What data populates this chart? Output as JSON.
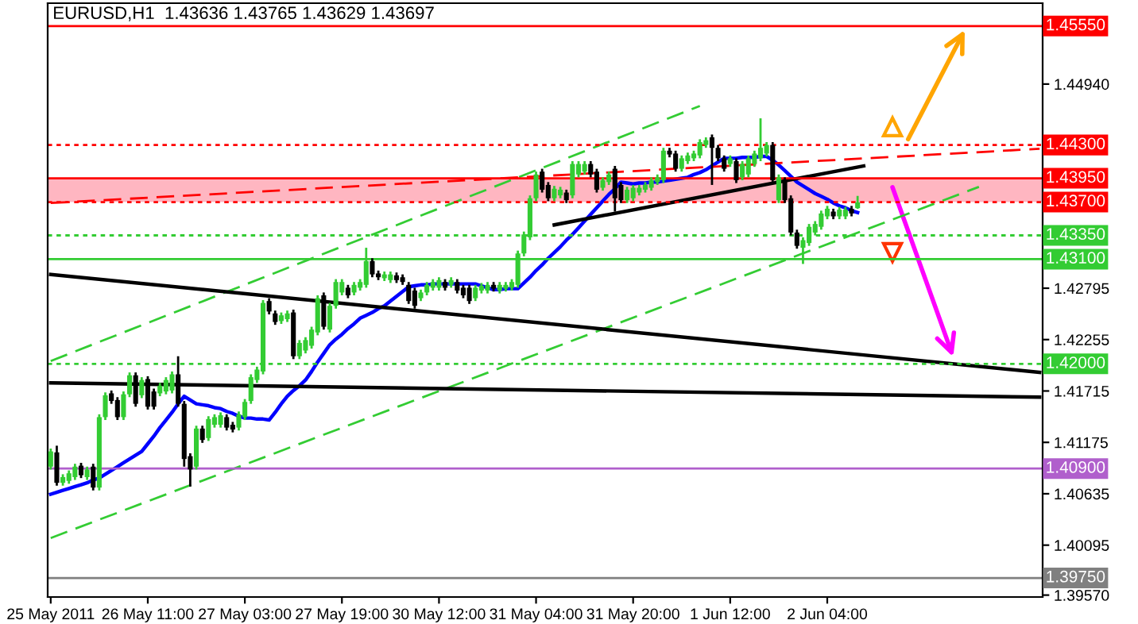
{
  "chart_data": {
    "type": "candlestick",
    "title": "EURUSD,H1  1.43636 1.43765 1.43629 1.43697",
    "categories": [
      "25 May 2011",
      null,
      null,
      null,
      null,
      null,
      null,
      null,
      null,
      null,
      null,
      null,
      null,
      null,
      null,
      null,
      "26 May 11:00",
      null,
      null,
      null,
      null,
      null,
      null,
      null,
      null,
      null,
      null,
      null,
      null,
      null,
      null,
      null,
      "27 May 03:00",
      null,
      null,
      null,
      null,
      null,
      null,
      null,
      null,
      null,
      null,
      null,
      null,
      null,
      null,
      null,
      "27 May 19:00",
      null,
      null,
      null,
      null,
      null,
      null,
      null,
      null,
      null,
      null,
      null,
      null,
      null,
      null,
      null,
      "30 May 12:00",
      null,
      null,
      null,
      null,
      null,
      null,
      null,
      null,
      null,
      null,
      null,
      null,
      null,
      null,
      null,
      "31 May 04:00",
      null,
      null,
      null,
      null,
      null,
      null,
      null,
      null,
      null,
      null,
      null,
      null,
      null,
      null,
      null,
      "31 May 20:00",
      null,
      null,
      null,
      null,
      null,
      null,
      null,
      null,
      null,
      null,
      null,
      null,
      null,
      null,
      null,
      "1 Jun 12:00",
      null,
      null,
      null,
      null,
      null,
      null,
      null,
      null,
      null,
      null,
      null,
      null,
      null,
      null,
      null,
      "2 Jun 04:00",
      null,
      null,
      null,
      null,
      null,
      null,
      null,
      null,
      null,
      null,
      null,
      null,
      null,
      null,
      null,
      null,
      null,
      null,
      null,
      null,
      null,
      null,
      null,
      null,
      null,
      null,
      null,
      null,
      null,
      null,
      null,
      null,
      null,
      null,
      null
    ],
    "ohlc": [
      [
        1.4092,
        1.4111,
        1.4089,
        1.4108
      ],
      [
        1.4107,
        1.4114,
        1.4072,
        1.4075
      ],
      [
        1.4075,
        1.4084,
        1.4072,
        1.4081
      ],
      [
        1.4077,
        1.4088,
        1.4074,
        1.4085
      ],
      [
        1.4081,
        1.4095,
        1.4078,
        1.4092
      ],
      [
        1.4093,
        1.4096,
        1.408,
        1.4083
      ],
      [
        1.4081,
        1.4092,
        1.4078,
        1.4089
      ],
      [
        1.4092,
        1.4095,
        1.4067,
        1.407
      ],
      [
        1.407,
        1.4147,
        1.4067,
        1.4144
      ],
      [
        1.4144,
        1.417,
        1.4141,
        1.4167
      ],
      [
        1.4169,
        1.4172,
        1.4158,
        1.4161
      ],
      [
        1.4162,
        1.4165,
        1.4141,
        1.4144
      ],
      [
        1.4144,
        1.4171,
        1.4141,
        1.4168
      ],
      [
        1.4168,
        1.4191,
        1.4165,
        1.4188
      ],
      [
        1.4188,
        1.4191,
        1.4155,
        1.4158
      ],
      [
        1.4167,
        1.4186,
        1.4164,
        1.4183
      ],
      [
        1.4184,
        1.4187,
        1.4152,
        1.4155
      ],
      [
        1.4171,
        1.4174,
        1.4152,
        1.4155
      ],
      [
        1.4169,
        1.418,
        1.4166,
        1.4177
      ],
      [
        1.4171,
        1.4186,
        1.4168,
        1.4183
      ],
      [
        1.4172,
        1.4192,
        1.4169,
        1.4189
      ],
      [
        1.4189,
        1.4208,
        1.4155,
        1.4158
      ],
      [
        1.4158,
        1.4161,
        1.4092,
        1.41
      ],
      [
        1.4103,
        1.4106,
        1.4071,
        1.4089
      ],
      [
        1.4092,
        1.4135,
        1.4089,
        1.4132
      ],
      [
        1.4132,
        1.4135,
        1.4117,
        1.412
      ],
      [
        1.4122,
        1.4145,
        1.4119,
        1.4142
      ],
      [
        1.4136,
        1.4147,
        1.4133,
        1.4144
      ],
      [
        1.4136,
        1.4149,
        1.4133,
        1.4146
      ],
      [
        1.4144,
        1.4147,
        1.413,
        1.4133
      ],
      [
        1.4136,
        1.4139,
        1.4128,
        1.4131
      ],
      [
        1.4133,
        1.415,
        1.413,
        1.4147
      ],
      [
        1.4144,
        1.4163,
        1.4141,
        1.416
      ],
      [
        1.4161,
        1.4189,
        1.4158,
        1.4186
      ],
      [
        1.4183,
        1.4197,
        1.418,
        1.4194
      ],
      [
        1.4192,
        1.4267,
        1.4189,
        1.4264
      ],
      [
        1.4266,
        1.4269,
        1.4252,
        1.4255
      ],
      [
        1.4253,
        1.4256,
        1.4241,
        1.4244
      ],
      [
        1.4245,
        1.4254,
        1.4242,
        1.4251
      ],
      [
        1.4247,
        1.4256,
        1.4244,
        1.4253
      ],
      [
        1.4254,
        1.4257,
        1.4205,
        1.4208
      ],
      [
        1.4208,
        1.4225,
        1.4205,
        1.4222
      ],
      [
        1.4214,
        1.4228,
        1.4211,
        1.4225
      ],
      [
        1.4219,
        1.4239,
        1.4216,
        1.4236
      ],
      [
        1.4233,
        1.4272,
        1.423,
        1.4269
      ],
      [
        1.4272,
        1.4275,
        1.4236,
        1.4239
      ],
      [
        1.4236,
        1.4264,
        1.4233,
        1.4261
      ],
      [
        1.4261,
        1.4289,
        1.4258,
        1.4286
      ],
      [
        1.4275,
        1.4289,
        1.4272,
        1.4286
      ],
      [
        1.428,
        1.4283,
        1.4269,
        1.4272
      ],
      [
        1.4275,
        1.4286,
        1.4272,
        1.4283
      ],
      [
        1.428,
        1.4289,
        1.4277,
        1.4286
      ],
      [
        1.4283,
        1.4322,
        1.428,
        1.4308
      ],
      [
        1.4308,
        1.4311,
        1.4291,
        1.4294
      ],
      [
        1.4295,
        1.4298,
        1.4288,
        1.4291
      ],
      [
        1.429,
        1.4297,
        1.4287,
        1.4294
      ],
      [
        1.4288,
        1.4297,
        1.4285,
        1.4294
      ],
      [
        1.4293,
        1.4296,
        1.4285,
        1.4288
      ],
      [
        1.4291,
        1.4294,
        1.4283,
        1.4286
      ],
      [
        1.4283,
        1.4286,
        1.4263,
        1.4266
      ],
      [
        1.4277,
        1.428,
        1.4258,
        1.4261
      ],
      [
        1.4269,
        1.4278,
        1.4266,
        1.4275
      ],
      [
        1.4275,
        1.4286,
        1.4272,
        1.4283
      ],
      [
        1.428,
        1.4289,
        1.4277,
        1.4286
      ],
      [
        1.428,
        1.4291,
        1.4277,
        1.4288
      ],
      [
        1.4286,
        1.4289,
        1.4277,
        1.428
      ],
      [
        1.4283,
        1.4291,
        1.428,
        1.4288
      ],
      [
        1.4286,
        1.4289,
        1.4274,
        1.4277
      ],
      [
        1.428,
        1.4283,
        1.4269,
        1.4272
      ],
      [
        1.428,
        1.4283,
        1.4263,
        1.4266
      ],
      [
        1.4269,
        1.4283,
        1.4266,
        1.428
      ],
      [
        1.4277,
        1.4285,
        1.4274,
        1.4282
      ],
      [
        1.4277,
        1.4286,
        1.4274,
        1.4283
      ],
      [
        1.4283,
        1.4286,
        1.4276,
        1.4279
      ],
      [
        1.4277,
        1.4286,
        1.4274,
        1.4283
      ],
      [
        1.4279,
        1.4286,
        1.4276,
        1.4283
      ],
      [
        1.428,
        1.4289,
        1.4277,
        1.4286
      ],
      [
        1.4283,
        1.4319,
        1.428,
        1.4316
      ],
      [
        1.4316,
        1.4339,
        1.4313,
        1.4336
      ],
      [
        1.4333,
        1.4377,
        1.433,
        1.4374
      ],
      [
        1.4374,
        1.4402,
        1.4371,
        1.4399
      ],
      [
        1.4402,
        1.4405,
        1.438,
        1.4383
      ],
      [
        1.4388,
        1.4391,
        1.4371,
        1.4374
      ],
      [
        1.4374,
        1.4387,
        1.4371,
        1.4384
      ],
      [
        1.4377,
        1.4386,
        1.4374,
        1.4383
      ],
      [
        1.438,
        1.4383,
        1.4369,
        1.4372
      ],
      [
        1.4377,
        1.4413,
        1.4374,
        1.441
      ],
      [
        1.4399,
        1.4413,
        1.4396,
        1.441
      ],
      [
        1.4402,
        1.4413,
        1.4399,
        1.441
      ],
      [
        1.441,
        1.4413,
        1.4396,
        1.4399
      ],
      [
        1.4402,
        1.4405,
        1.438,
        1.4383
      ],
      [
        1.4385,
        1.4396,
        1.4382,
        1.4393
      ],
      [
        1.4391,
        1.4402,
        1.4388,
        1.4399
      ],
      [
        1.4405,
        1.4408,
        1.436,
        1.4374
      ],
      [
        1.4388,
        1.4391,
        1.4369,
        1.4372
      ],
      [
        1.4372,
        1.4386,
        1.4369,
        1.4383
      ],
      [
        1.4374,
        1.4388,
        1.4371,
        1.4385
      ],
      [
        1.438,
        1.4388,
        1.4377,
        1.4385
      ],
      [
        1.4383,
        1.4391,
        1.438,
        1.4388
      ],
      [
        1.4385,
        1.4396,
        1.4382,
        1.4393
      ],
      [
        1.4391,
        1.4399,
        1.4388,
        1.4396
      ],
      [
        1.4393,
        1.4427,
        1.439,
        1.4424
      ],
      [
        1.4424,
        1.4427,
        1.4417,
        1.442
      ],
      [
        1.4421,
        1.4424,
        1.4402,
        1.4405
      ],
      [
        1.4405,
        1.4419,
        1.4402,
        1.4416
      ],
      [
        1.4413,
        1.4422,
        1.441,
        1.4419
      ],
      [
        1.4416,
        1.4424,
        1.4413,
        1.4421
      ],
      [
        1.4419,
        1.4436,
        1.4416,
        1.4433
      ],
      [
        1.443,
        1.4438,
        1.4427,
        1.4435
      ],
      [
        1.4438,
        1.4441,
        1.4388,
        1.4427
      ],
      [
        1.4427,
        1.443,
        1.4413,
        1.4416
      ],
      [
        1.4416,
        1.4419,
        1.4402,
        1.4405
      ],
      [
        1.441,
        1.4419,
        1.4407,
        1.4416
      ],
      [
        1.4413,
        1.4416,
        1.439,
        1.4393
      ],
      [
        1.4396,
        1.4413,
        1.4393,
        1.441
      ],
      [
        1.4399,
        1.4419,
        1.4396,
        1.4416
      ],
      [
        1.441,
        1.4424,
        1.4407,
        1.4421
      ],
      [
        1.4416,
        1.4458,
        1.4413,
        1.4427
      ],
      [
        1.4421,
        1.4433,
        1.4418,
        1.443
      ],
      [
        1.443,
        1.4433,
        1.439,
        1.4393
      ],
      [
        1.4372,
        1.4399,
        1.4369,
        1.4396
      ],
      [
        1.4393,
        1.4396,
        1.4369,
        1.4372
      ],
      [
        1.4374,
        1.4377,
        1.4335,
        1.4338
      ],
      [
        1.4338,
        1.4341,
        1.4321,
        1.4324
      ],
      [
        1.4322,
        1.4333,
        1.4305,
        1.433
      ],
      [
        1.4327,
        1.4347,
        1.4324,
        1.4344
      ],
      [
        1.4338,
        1.435,
        1.4335,
        1.4347
      ],
      [
        1.4344,
        1.4361,
        1.4341,
        1.4358
      ],
      [
        1.4355,
        1.4366,
        1.4352,
        1.4363
      ],
      [
        1.436,
        1.4363,
        1.4352,
        1.4355
      ],
      [
        1.4355,
        1.4365,
        1.4352,
        1.4362
      ],
      [
        1.4355,
        1.4365,
        1.4352,
        1.4362
      ],
      [
        1.4363,
        1.4366,
        1.4355,
        1.4358
      ],
      [
        1.43636,
        1.43765,
        1.43629,
        1.43697
      ],
      null,
      null,
      null,
      null,
      null,
      null,
      null,
      null,
      null,
      null,
      null,
      null,
      null,
      null,
      null,
      null,
      null,
      null,
      null,
      null,
      null,
      null,
      null,
      null,
      null,
      null,
      null,
      null,
      null,
      null
    ],
    "series": [
      {
        "type": "line",
        "color": "#0000ff",
        "values": [
          1.4063,
          1.4065,
          1.4067,
          1.4069,
          1.4071,
          1.4073,
          1.4075,
          1.4078,
          1.408,
          1.4084,
          1.4088,
          1.4092,
          1.4096,
          1.41,
          1.4104,
          1.4108,
          1.4116,
          1.4124,
          1.4133,
          1.4141,
          1.4149,
          1.4158,
          1.4166,
          1.4162,
          1.4158,
          1.4157,
          1.4156,
          1.4154,
          1.4153,
          1.415,
          1.4148,
          1.4145,
          1.4143,
          1.4143,
          1.4142,
          1.4142,
          1.4141,
          1.4149,
          1.4158,
          1.4166,
          1.4172,
          1.4177,
          1.4183,
          1.4192,
          1.4202,
          1.4211,
          1.422,
          1.4226,
          1.4231,
          1.4237,
          1.4242,
          1.4248,
          1.4251,
          1.4254,
          1.4258,
          1.4261,
          1.4266,
          1.4271,
          1.4276,
          1.4281,
          1.4282,
          1.4283,
          1.4283,
          1.4284,
          1.4284,
          1.4284,
          1.4284,
          1.4284,
          1.4284,
          1.4284,
          1.4284,
          1.4282,
          1.428,
          1.4278,
          1.4278,
          1.4279,
          1.4279,
          1.4279,
          1.4285,
          1.4291,
          1.4298,
          1.4304,
          1.4311,
          1.4317,
          1.4323,
          1.433,
          1.4336,
          1.4343,
          1.435,
          1.4357,
          1.4364,
          1.4371,
          1.4378,
          1.4384,
          1.4391,
          1.439,
          1.4389,
          1.439,
          1.439,
          1.4391,
          1.4391,
          1.4392,
          1.4393,
          1.4394,
          1.4395,
          1.4396,
          1.4399,
          1.4401,
          1.4404,
          1.4408,
          1.4412,
          1.4416,
          1.4416,
          1.4416,
          1.4417,
          1.4417,
          1.4417,
          1.4418,
          1.4418,
          1.4414,
          1.4409,
          1.4403,
          1.4397,
          1.4391,
          1.4387,
          1.4383,
          1.4379,
          1.4376,
          1.4373,
          1.4369,
          1.4366,
          1.4364,
          1.4361,
          1.4359,
          null,
          null,
          null,
          null,
          null,
          null,
          null,
          null,
          null,
          null,
          null,
          null,
          null,
          null,
          null,
          null,
          null,
          null,
          null,
          null,
          null,
          null,
          null,
          null,
          null,
          null,
          null,
          null,
          null,
          null
        ]
      },
      {
        "type": "line",
        "color": "#33cc33",
        "line_style": "dashed",
        "values": [
          1.4203,
          null,
          null,
          null,
          null,
          null,
          null,
          null,
          null,
          null,
          null,
          null,
          null,
          null,
          null,
          null,
          null,
          null,
          null,
          null,
          null,
          null,
          null,
          null,
          null,
          null,
          null,
          null,
          null,
          null,
          null,
          null,
          null,
          null,
          null,
          null,
          null,
          null,
          null,
          null,
          null,
          null,
          null,
          null,
          null,
          null,
          null,
          null,
          null,
          null,
          null,
          null,
          null,
          null,
          null,
          null,
          null,
          null,
          null,
          null,
          null,
          null,
          null,
          null,
          null,
          null,
          null,
          null,
          null,
          null,
          null,
          null,
          null,
          null,
          null,
          null,
          null,
          null,
          null,
          null,
          null,
          null,
          null,
          null,
          null,
          null,
          null,
          null,
          null,
          null,
          null,
          null,
          null,
          null,
          null,
          null,
          null,
          null,
          null,
          null,
          null,
          null,
          null,
          null,
          null,
          null,
          null,
          1.4471,
          null,
          null,
          null,
          null,
          null,
          null,
          null,
          null,
          null,
          null,
          null,
          null,
          null,
          null,
          null,
          null,
          null,
          null,
          null,
          null,
          null,
          null,
          null,
          null,
          null,
          null,
          null,
          null,
          null,
          null,
          null,
          null,
          null,
          null,
          null,
          null,
          null,
          null,
          null,
          null,
          null,
          null,
          null,
          null,
          null,
          null,
          null,
          null,
          null,
          null,
          null,
          null,
          null,
          null,
          null,
          null
        ]
      },
      {
        "type": "line",
        "color": "#33cc33",
        "line_style": "dashed",
        "values": [
          1.4017,
          null,
          null,
          null,
          null,
          null,
          null,
          null,
          null,
          null,
          null,
          null,
          null,
          null,
          null,
          null,
          null,
          null,
          null,
          null,
          null,
          null,
          null,
          null,
          null,
          null,
          null,
          null,
          null,
          null,
          null,
          null,
          null,
          null,
          null,
          null,
          null,
          null,
          null,
          null,
          null,
          null,
          null,
          null,
          null,
          null,
          null,
          null,
          null,
          null,
          null,
          null,
          null,
          null,
          null,
          null,
          null,
          null,
          null,
          null,
          null,
          null,
          null,
          null,
          null,
          null,
          null,
          null,
          null,
          null,
          null,
          null,
          null,
          null,
          null,
          null,
          null,
          null,
          null,
          null,
          null,
          null,
          null,
          null,
          null,
          null,
          null,
          null,
          null,
          null,
          null,
          null,
          null,
          null,
          null,
          null,
          null,
          null,
          null,
          null,
          null,
          null,
          null,
          null,
          null,
          null,
          null,
          null,
          null,
          null,
          null,
          null,
          null,
          null,
          null,
          null,
          null,
          null,
          null,
          null,
          null,
          null,
          null,
          null,
          null,
          null,
          null,
          null,
          null,
          null,
          null,
          null,
          null,
          null,
          null,
          null,
          null,
          null,
          null,
          null,
          null,
          null,
          null,
          null,
          null,
          null,
          null,
          null,
          null,
          null,
          null,
          null,
          null,
          1.4386,
          null,
          null,
          null,
          null,
          null,
          null,
          null,
          null,
          null,
          null
        ]
      },
      {
        "type": "line",
        "color": "#000000",
        "values": [
          1.4294,
          null,
          null,
          null,
          null,
          null,
          null,
          null,
          null,
          null,
          null,
          null,
          null,
          null,
          null,
          null,
          null,
          null,
          null,
          null,
          null,
          null,
          null,
          null,
          null,
          null,
          null,
          null,
          null,
          null,
          null,
          null,
          null,
          null,
          null,
          null,
          null,
          null,
          null,
          null,
          null,
          null,
          null,
          null,
          null,
          null,
          null,
          null,
          null,
          null,
          null,
          null,
          null,
          null,
          null,
          null,
          null,
          null,
          null,
          null,
          null,
          null,
          null,
          null,
          null,
          null,
          null,
          null,
          null,
          null,
          null,
          null,
          null,
          null,
          null,
          null,
          null,
          null,
          null,
          null,
          null,
          null,
          null,
          null,
          null,
          null,
          null,
          null,
          null,
          null,
          null,
          null,
          null,
          null,
          null,
          null,
          null,
          null,
          null,
          null,
          null,
          null,
          null,
          null,
          null,
          null,
          null,
          null,
          null,
          null,
          null,
          null,
          null,
          null,
          null,
          null,
          null,
          null,
          null,
          null,
          null,
          null,
          null,
          null,
          null,
          null,
          null,
          null,
          null,
          null,
          null,
          null,
          null,
          null,
          null,
          null,
          null,
          null,
          null,
          null,
          null,
          null,
          null,
          null,
          null,
          null,
          null,
          null,
          null,
          null,
          null,
          null,
          null,
          null,
          null,
          null,
          null,
          null,
          null,
          null,
          null,
          null,
          null,
          1.4191
        ]
      },
      {
        "type": "line",
        "color": "#000000",
        "values": [
          1.418,
          null,
          null,
          null,
          null,
          null,
          null,
          null,
          null,
          null,
          null,
          null,
          null,
          null,
          null,
          null,
          null,
          null,
          null,
          null,
          null,
          null,
          null,
          null,
          null,
          null,
          null,
          null,
          null,
          null,
          null,
          null,
          null,
          null,
          null,
          null,
          null,
          null,
          null,
          null,
          null,
          null,
          null,
          null,
          null,
          null,
          null,
          null,
          null,
          null,
          null,
          null,
          null,
          null,
          null,
          null,
          null,
          null,
          null,
          null,
          null,
          null,
          null,
          null,
          null,
          null,
          null,
          null,
          null,
          null,
          null,
          null,
          null,
          null,
          null,
          null,
          null,
          null,
          null,
          null,
          null,
          null,
          null,
          null,
          null,
          null,
          null,
          null,
          null,
          null,
          null,
          null,
          null,
          null,
          null,
          null,
          null,
          null,
          null,
          null,
          null,
          null,
          null,
          null,
          null,
          null,
          null,
          null,
          null,
          null,
          null,
          null,
          null,
          null,
          null,
          null,
          null,
          null,
          null,
          null,
          null,
          null,
          null,
          null,
          null,
          null,
          null,
          null,
          null,
          null,
          null,
          null,
          null,
          null,
          null,
          null,
          null,
          null,
          null,
          null,
          null,
          null,
          null,
          null,
          null,
          null,
          null,
          null,
          null,
          null,
          null,
          null,
          null,
          null,
          null,
          null,
          null,
          null,
          null,
          null,
          null,
          null,
          null,
          1.4165
        ]
      },
      {
        "type": "line",
        "color": "#000000",
        "values": [
          null,
          null,
          null,
          null,
          null,
          null,
          null,
          null,
          null,
          null,
          null,
          null,
          null,
          null,
          null,
          null,
          null,
          null,
          null,
          null,
          null,
          null,
          null,
          null,
          null,
          null,
          null,
          null,
          null,
          null,
          null,
          null,
          null,
          null,
          null,
          null,
          null,
          null,
          null,
          null,
          null,
          null,
          null,
          null,
          null,
          null,
          null,
          null,
          null,
          null,
          null,
          null,
          null,
          null,
          null,
          null,
          null,
          null,
          null,
          null,
          null,
          null,
          null,
          null,
          null,
          null,
          null,
          null,
          null,
          null,
          null,
          null,
          null,
          null,
          null,
          null,
          null,
          null,
          null,
          null,
          null,
          null,
          null,
          1.4346,
          null,
          null,
          null,
          null,
          null,
          null,
          null,
          null,
          null,
          null,
          null,
          null,
          null,
          null,
          null,
          null,
          null,
          null,
          null,
          null,
          null,
          null,
          null,
          null,
          null,
          null,
          null,
          null,
          null,
          null,
          null,
          null,
          null,
          null,
          null,
          null,
          null,
          null,
          null,
          null,
          null,
          null,
          null,
          null,
          null,
          null,
          null,
          null,
          null,
          null,
          1.4408,
          null,
          null,
          null,
          null,
          null,
          null,
          null,
          null,
          null,
          null,
          null,
          null,
          null,
          null,
          null,
          null,
          null,
          null,
          null,
          null,
          null,
          null,
          null,
          null,
          null,
          null,
          null,
          null,
          null
        ]
      },
      {
        "type": "line",
        "color": "#ff0000",
        "line_style": "dashed",
        "values": [
          1.4369,
          null,
          null,
          null,
          null,
          null,
          null,
          null,
          null,
          null,
          null,
          null,
          null,
          null,
          null,
          null,
          null,
          null,
          null,
          null,
          null,
          null,
          null,
          null,
          null,
          null,
          null,
          null,
          null,
          null,
          null,
          null,
          null,
          null,
          null,
          null,
          null,
          null,
          null,
          null,
          null,
          null,
          null,
          null,
          null,
          null,
          null,
          null,
          null,
          null,
          null,
          null,
          null,
          null,
          null,
          null,
          null,
          null,
          null,
          null,
          null,
          null,
          null,
          null,
          null,
          null,
          null,
          null,
          null,
          null,
          null,
          null,
          null,
          null,
          null,
          null,
          null,
          null,
          null,
          null,
          null,
          null,
          null,
          null,
          null,
          null,
          null,
          null,
          null,
          null,
          null,
          null,
          null,
          null,
          null,
          null,
          null,
          null,
          null,
          null,
          null,
          null,
          null,
          null,
          null,
          null,
          null,
          null,
          null,
          null,
          null,
          null,
          null,
          null,
          null,
          null,
          null,
          null,
          null,
          null,
          null,
          null,
          null,
          null,
          null,
          null,
          null,
          null,
          null,
          null,
          null,
          null,
          null,
          null,
          null,
          null,
          null,
          null,
          null,
          null,
          null,
          null,
          null,
          null,
          null,
          null,
          null,
          null,
          null,
          null,
          null,
          null,
          null,
          null,
          null,
          null,
          null,
          null,
          null,
          null,
          null,
          null,
          null,
          1.4426
        ]
      }
    ],
    "ref_lines": [
      {
        "axis": "y",
        "value": 1.4555,
        "label": "1.45550",
        "color": "#ff0000"
      },
      {
        "axis": "y",
        "value": 1.443,
        "label": "1.44300",
        "color": "#ff0000",
        "line_style": "dotted"
      },
      {
        "axis": "y",
        "value": 1.4395,
        "label": "1.43950",
        "color": "#ff0000"
      },
      {
        "axis": "y",
        "value": 1.437,
        "label": "1.43700",
        "color": "#ff0000",
        "line_style": "dotted"
      },
      {
        "axis": "y",
        "value": 1.4335,
        "label": "1.43350",
        "color": "#33cc33",
        "line_style": "dotted"
      },
      {
        "axis": "y",
        "value": 1.431,
        "label": "1.43100",
        "color": "#33cc33"
      },
      {
        "axis": "y",
        "value": 1.42,
        "label": "1.42000",
        "color": "#33cc33",
        "line_style": "dotted"
      },
      {
        "axis": "y",
        "value": 1.409,
        "label": "1.40900",
        "color": "#b05fcc"
      },
      {
        "axis": "y",
        "value": 1.3975,
        "label": "1.39750",
        "color": "#808080"
      }
    ],
    "bands": [
      {
        "axis": "y",
        "from": 1.437,
        "to": 1.4395,
        "color": "#ffb6c1"
      }
    ],
    "ylim": [
      1.3955,
      1.4579
    ],
    "yticks": [
      {
        "value": 1.4494,
        "label": "1.44940"
      },
      {
        "value": 1.42795,
        "label": "1.42795"
      },
      {
        "value": 1.42255,
        "label": "1.42255"
      },
      {
        "value": 1.41715,
        "label": "1.41715"
      },
      {
        "value": 1.41175,
        "label": "1.41175"
      },
      {
        "value": 1.40635,
        "label": "1.40635"
      },
      {
        "value": 1.40095,
        "label": "1.40095"
      },
      {
        "value": 1.3957,
        "label": "1.39570"
      }
    ],
    "grid": false,
    "legend": false
  }
}
